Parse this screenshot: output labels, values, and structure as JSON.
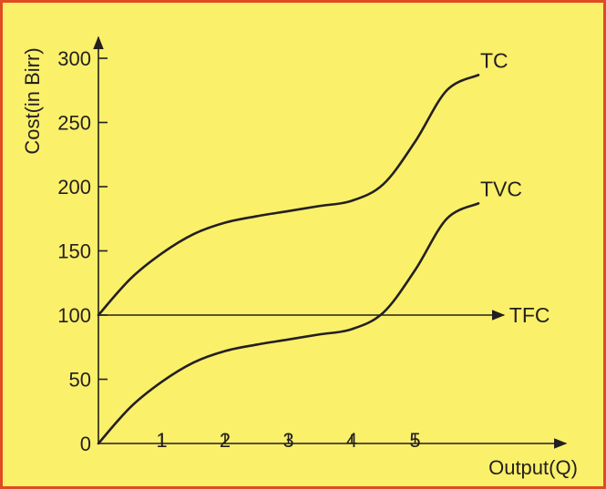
{
  "colors": {
    "background": "#faf06a",
    "border": "#e04a24",
    "ink": "#231f20"
  },
  "chart_data": {
    "type": "line",
    "title": "",
    "xlabel": "Output(Q)",
    "ylabel": "Cost(in Birr)",
    "x_ticks": [
      "1",
      "2",
      "3",
      "4",
      "5"
    ],
    "y_ticks": [
      "0",
      "50",
      "100",
      "150",
      "200",
      "250",
      "300"
    ],
    "xlim": [
      0,
      7.5
    ],
    "ylim": [
      0,
      300
    ],
    "grid": false,
    "legend": "none",
    "series": [
      {
        "name": "TC",
        "x": [
          0,
          0.5,
          1,
          1.5,
          2,
          2.5,
          3,
          3.5,
          4,
          4.5,
          5,
          5.5,
          6
        ],
        "y": [
          100,
          128,
          148,
          163,
          172,
          177,
          181,
          185,
          189,
          202,
          235,
          275,
          287
        ]
      },
      {
        "name": "TVC",
        "x": [
          0,
          0.5,
          1,
          1.5,
          2,
          2.5,
          3,
          3.5,
          4,
          4.5,
          5,
          5.5,
          6
        ],
        "y": [
          0,
          28,
          48,
          63,
          72,
          77,
          81,
          85,
          89,
          102,
          135,
          175,
          187
        ]
      },
      {
        "name": "TFC",
        "x": [
          0,
          6.4
        ],
        "y": [
          100,
          100
        ]
      }
    ]
  }
}
